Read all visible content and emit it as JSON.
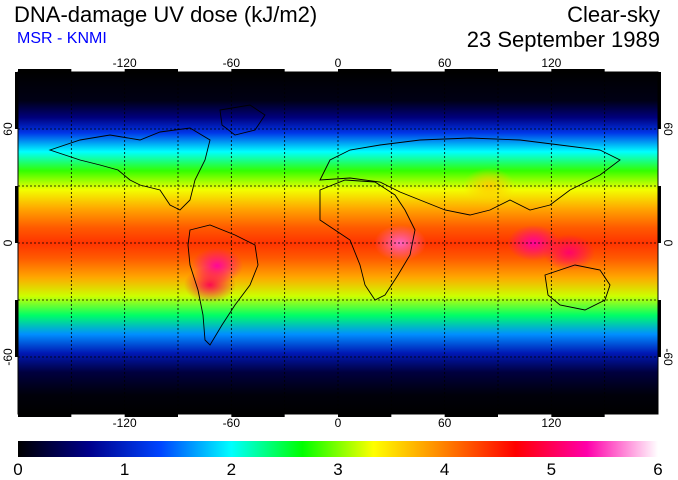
{
  "header": {
    "title": "DNA-damage UV dose (kJ/m2)",
    "subtitle": "MSR - KNMI",
    "condition": "Clear-sky",
    "date": "23 September 1989"
  },
  "colors": {
    "subtitle": "#0000ff",
    "frame": "#000000"
  },
  "map": {
    "lon_range": [
      -180,
      180
    ],
    "lat_range": [
      -90,
      90
    ],
    "lon_ticks": [
      "-120",
      "-60",
      "0",
      "60",
      "120"
    ],
    "lat_ticks": [
      "60",
      "0",
      "-60"
    ],
    "grid": "dashed",
    "band_profile": [
      {
        "lat": 90,
        "dose": 0
      },
      {
        "lat": 75,
        "dose": 0.1
      },
      {
        "lat": 66,
        "dose": 0.6
      },
      {
        "lat": 58,
        "dose": 1.2
      },
      {
        "lat": 48,
        "dose": 2.0
      },
      {
        "lat": 38,
        "dose": 2.8
      },
      {
        "lat": 28,
        "dose": 3.3
      },
      {
        "lat": 18,
        "dose": 3.8
      },
      {
        "lat": 8,
        "dose": 4.2
      },
      {
        "lat": 0,
        "dose": 4.4
      },
      {
        "lat": -8,
        "dose": 4.2
      },
      {
        "lat": -18,
        "dose": 3.8
      },
      {
        "lat": -28,
        "dose": 3.2
      },
      {
        "lat": -38,
        "dose": 2.4
      },
      {
        "lat": -48,
        "dose": 1.6
      },
      {
        "lat": -58,
        "dose": 0.9
      },
      {
        "lat": -68,
        "dose": 0.3
      },
      {
        "lat": -80,
        "dose": 0.05
      },
      {
        "lat": -90,
        "dose": 0
      }
    ],
    "hotspots": [
      {
        "lon": -68,
        "lat": -12,
        "dose": 5.3
      },
      {
        "lon": -72,
        "lat": -22,
        "dose": 5.0
      },
      {
        "lon": 35,
        "lat": 0,
        "dose": 5.6
      },
      {
        "lon": 110,
        "lat": 0,
        "dose": 5.3
      },
      {
        "lon": 130,
        "lat": -5,
        "dose": 5.1
      },
      {
        "lon": 85,
        "lat": 30,
        "dose": 3.6
      }
    ]
  },
  "colorbar": {
    "min": 0,
    "max": 6,
    "tick_labels": [
      "0",
      "1",
      "2",
      "3",
      "4",
      "5",
      "6"
    ],
    "stops": [
      "#000000",
      "#00008b",
      "#0044ff",
      "#00ffff",
      "#00ff00",
      "#ffff00",
      "#ff8000",
      "#ff0000",
      "#ff00aa",
      "#ffffff"
    ]
  }
}
